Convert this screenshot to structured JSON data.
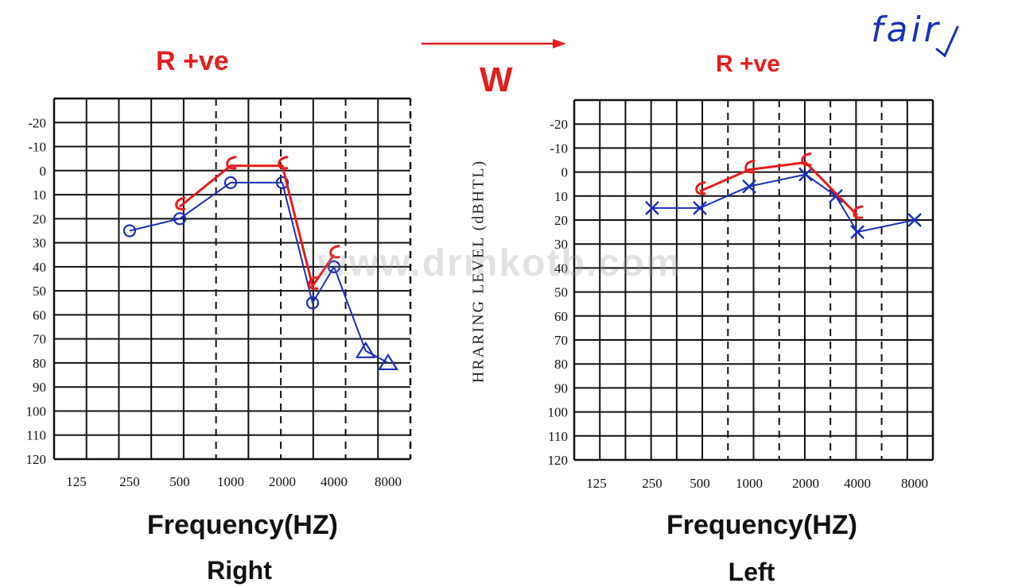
{
  "header": {
    "left_title": "R +ve",
    "arrow_label": "W",
    "right_title": "R +ve",
    "handwritten_note": "fair"
  },
  "watermark": "www.drmkotb.com",
  "colors": {
    "red": "#e41d1d",
    "blue": "#1a2fb8",
    "grid": "#111111"
  },
  "chart_data": [
    {
      "type": "line",
      "panel": "right-ear",
      "title": "R +ve",
      "xlabel": "Frequency(HZ)",
      "ylabel": "HRARING LEVEL (dBHTL)",
      "side_label": "Right",
      "categories": [
        "125",
        "250",
        "500",
        "1000",
        "2000",
        "4000",
        "8000"
      ],
      "y_ticks": [
        -20,
        -10,
        0,
        10,
        20,
        30,
        40,
        50,
        60,
        70,
        80,
        90,
        100,
        110,
        120
      ],
      "ylim": [
        -20,
        120
      ],
      "y_inverted": true,
      "grid": true,
      "series": [
        {
          "kind": "air",
          "color": "#1a2fb8",
          "points": [
            {
              "x": 250,
              "y": 25,
              "marker": "circle"
            },
            {
              "x": 500,
              "y": 20,
              "marker": "circle"
            },
            {
              "x": 1000,
              "y": 5,
              "marker": "circle"
            },
            {
              "x": 2000,
              "y": 5,
              "marker": "circle"
            },
            {
              "x": 3000,
              "y": 55,
              "marker": "circle"
            },
            {
              "x": 4000,
              "y": 40,
              "marker": "circle"
            },
            {
              "x": 6000,
              "y": 75,
              "marker": "triangle"
            },
            {
              "x": 8000,
              "y": 80,
              "marker": "triangle"
            }
          ]
        },
        {
          "kind": "bone",
          "color": "#e41d1d",
          "points": [
            {
              "x": 500,
              "y": 15,
              "marker": "bracket"
            },
            {
              "x": 1000,
              "y": -2,
              "marker": "bracket"
            },
            {
              "x": 2000,
              "y": -2,
              "marker": "bracket"
            },
            {
              "x": 3000,
              "y": 48,
              "marker": "bracket"
            },
            {
              "x": 4000,
              "y": 35,
              "marker": "bracket"
            }
          ]
        }
      ]
    },
    {
      "type": "line",
      "panel": "left-ear",
      "title": "R +ve",
      "xlabel": "Frequency(HZ)",
      "ylabel": "",
      "side_label": "Left",
      "categories": [
        "125",
        "250",
        "500",
        "1000",
        "2000",
        "4000",
        "8000"
      ],
      "y_ticks": [
        -20,
        -10,
        0,
        10,
        20,
        30,
        40,
        50,
        60,
        70,
        80,
        90,
        100,
        110,
        120
      ],
      "ylim": [
        -20,
        120
      ],
      "y_inverted": true,
      "grid": true,
      "series": [
        {
          "kind": "air",
          "color": "#1a2fb8",
          "points": [
            {
              "x": 250,
              "y": 15,
              "marker": "cross"
            },
            {
              "x": 500,
              "y": 15,
              "marker": "cross"
            },
            {
              "x": 1000,
              "y": 6,
              "marker": "cross"
            },
            {
              "x": 2000,
              "y": 1,
              "marker": "cross"
            },
            {
              "x": 3000,
              "y": 10,
              "marker": "cross"
            },
            {
              "x": 4000,
              "y": 25,
              "marker": "cross"
            },
            {
              "x": 8000,
              "y": 20,
              "marker": "cross"
            }
          ]
        },
        {
          "kind": "bone",
          "color": "#e41d1d",
          "points": [
            {
              "x": 500,
              "y": 8,
              "marker": "bracket"
            },
            {
              "x": 1000,
              "y": -1,
              "marker": "bracket"
            },
            {
              "x": 2000,
              "y": -4,
              "marker": "bracket"
            },
            {
              "x": 4000,
              "y": 18,
              "marker": "bracket"
            }
          ]
        }
      ]
    }
  ]
}
